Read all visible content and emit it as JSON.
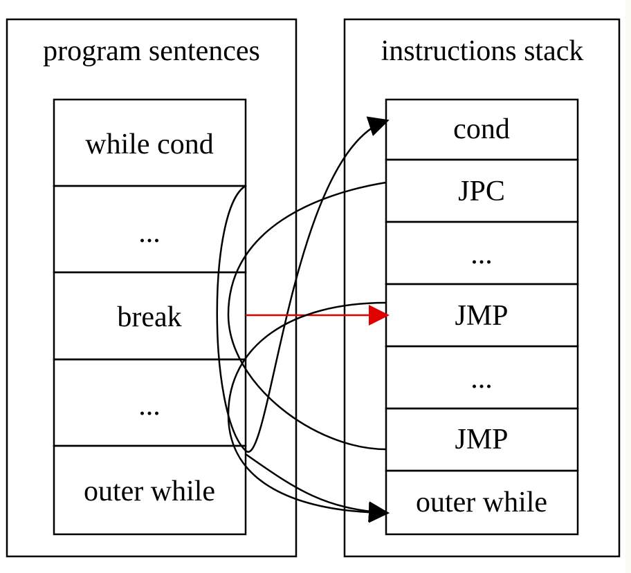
{
  "left_cluster": {
    "title": "program sentences",
    "cells": [
      "while cond",
      "...",
      "break",
      "...",
      "outer while"
    ]
  },
  "right_cluster": {
    "title": "instructions stack",
    "cells": [
      "cond",
      "JPC",
      "...",
      "JMP",
      "...",
      "JMP",
      "outer while"
    ]
  },
  "edges": [
    {
      "from": "while cond",
      "to": "cond",
      "color": "#000000"
    },
    {
      "from": "JPC",
      "to": "...",
      "color": "#000000"
    },
    {
      "from": "break",
      "to": "JMP",
      "color": "#e00000"
    },
    {
      "from": "JMP",
      "to": "outer while",
      "color": "#000000"
    },
    {
      "from": "JMP",
      "to": "while cond",
      "color": "#000000"
    },
    {
      "from": "outer while",
      "to": "outer while",
      "color": "#000000"
    }
  ]
}
